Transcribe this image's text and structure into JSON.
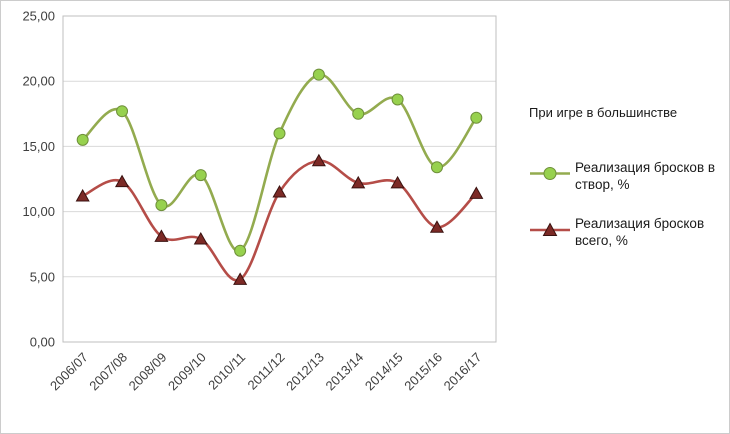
{
  "chart_data": {
    "type": "line",
    "title": "При игре в большинстве",
    "categories": [
      "2006/07",
      "2007/08",
      "2008/09",
      "2009/10",
      "2010/11",
      "2011/12",
      "2012/13",
      "2013/14",
      "2014/15",
      "2015/16",
      "2016/17"
    ],
    "series": [
      {
        "name": "Реализация бросков в створ, %",
        "values": [
          15.5,
          17.7,
          10.5,
          12.8,
          7.0,
          16.0,
          20.5,
          17.5,
          18.6,
          13.4,
          17.2
        ],
        "marker": "circle",
        "line_color": "#93ab4f",
        "marker_fill": "#97d14e",
        "marker_stroke": "#6e8f3a"
      },
      {
        "name": "Реализация бросков всего, %",
        "values": [
          11.2,
          12.3,
          8.1,
          7.9,
          4.8,
          11.5,
          13.9,
          12.2,
          12.2,
          8.8,
          11.4
        ],
        "marker": "triangle",
        "line_color": "#b54d48",
        "marker_fill": "#7c2a26",
        "marker_stroke": "#3a1210"
      }
    ],
    "ylim": [
      0,
      25
    ],
    "y_ticks": [
      {
        "value": 0,
        "label": "0,00"
      },
      {
        "value": 5,
        "label": "5,00"
      },
      {
        "value": 10,
        "label": "10,00"
      },
      {
        "value": 15,
        "label": "15,00"
      },
      {
        "value": 20,
        "label": "20,00"
      },
      {
        "value": 25,
        "label": "25,00"
      }
    ],
    "xlabel": "",
    "ylabel": "",
    "grid": "on",
    "legend_position": "right",
    "grid_color": "#d9d9d9",
    "border_color": "#bfbfbf",
    "text_color": "#3f3f3f"
  }
}
